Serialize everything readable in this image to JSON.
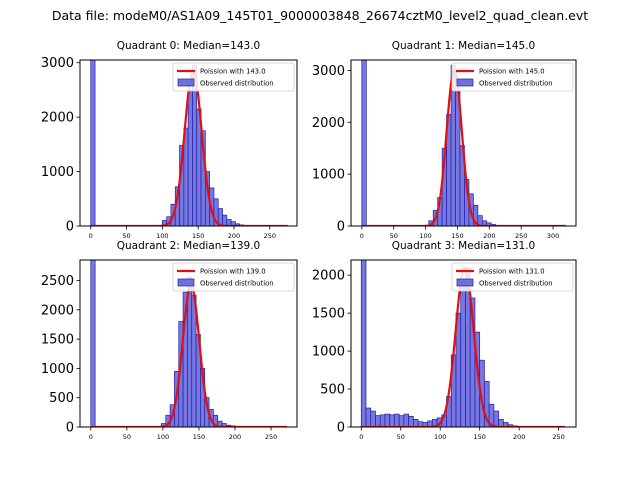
{
  "figure_title": "Data file: modeM0/AS1A09_145T01_9000003848_26674cztM0_level2_quad_clean.evt",
  "colors": {
    "bar_fill": "#7070e0",
    "bar_edge": "#2020a0",
    "curve": "#e01010",
    "axes": "#000000"
  },
  "chart_data": [
    {
      "type": "bar",
      "title": "Quadrant 0: Median=143.0",
      "legend": [
        "Poission with 143.0",
        "Observed distribution"
      ],
      "legend_position": "top-right",
      "xlim": [
        -15,
        288
      ],
      "ylim": [
        0,
        3050
      ],
      "xticks": [
        0,
        50,
        100,
        150,
        200,
        250
      ],
      "yticks": [
        0,
        1000,
        2000,
        3000
      ],
      "bin_width": 6,
      "bins": [
        [
          0,
          3050
        ],
        [
          100,
          100
        ],
        [
          106,
          170
        ],
        [
          112,
          400
        ],
        [
          118,
          720
        ],
        [
          124,
          1480
        ],
        [
          130,
          1800
        ],
        [
          136,
          2500
        ],
        [
          142,
          2950
        ],
        [
          148,
          2150
        ],
        [
          154,
          1750
        ],
        [
          160,
          1000
        ],
        [
          166,
          700
        ],
        [
          172,
          500
        ],
        [
          178,
          320
        ],
        [
          184,
          200
        ],
        [
          190,
          120
        ],
        [
          196,
          80
        ],
        [
          202,
          40
        ],
        [
          208,
          20
        ]
      ],
      "poisson": {
        "mean": 143,
        "peak": 2850,
        "sigma": 12,
        "x_range": [
          0,
          275
        ]
      }
    },
    {
      "type": "bar",
      "title": "Quadrant 1: Median=145.0",
      "legend": [
        "Poission with 145.0",
        "Observed distribution"
      ],
      "legend_position": "top-right",
      "xlim": [
        -17,
        336
      ],
      "ylim": [
        0,
        3200
      ],
      "xticks": [
        0,
        50,
        100,
        150,
        200,
        250,
        300
      ],
      "yticks": [
        0,
        1000,
        2000,
        3000
      ],
      "bin_width": 7,
      "bins": [
        [
          0,
          3200
        ],
        [
          105,
          100
        ],
        [
          112,
          300
        ],
        [
          119,
          550
        ],
        [
          126,
          1500
        ],
        [
          133,
          2150
        ],
        [
          140,
          3100
        ],
        [
          147,
          2600
        ],
        [
          154,
          1550
        ],
        [
          161,
          900
        ],
        [
          168,
          620
        ],
        [
          175,
          400
        ],
        [
          182,
          200
        ],
        [
          189,
          100
        ],
        [
          196,
          60
        ],
        [
          203,
          30
        ]
      ],
      "poisson": {
        "mean": 145,
        "peak": 3000,
        "sigma": 12,
        "x_range": [
          0,
          320
        ]
      }
    },
    {
      "type": "bar",
      "title": "Quadrant 2: Median=139.0",
      "legend": [
        "Poission with 139.0",
        "Observed distribution"
      ],
      "legend_position": "top-right",
      "xlim": [
        -15,
        286
      ],
      "ylim": [
        0,
        2850
      ],
      "xticks": [
        0,
        50,
        100,
        150,
        200,
        250
      ],
      "yticks": [
        0,
        500,
        1000,
        1500,
        2000,
        2500
      ],
      "bin_width": 6,
      "bins": [
        [
          0,
          2850
        ],
        [
          98,
          60
        ],
        [
          104,
          200
        ],
        [
          110,
          380
        ],
        [
          116,
          950
        ],
        [
          122,
          1800
        ],
        [
          128,
          2300
        ],
        [
          134,
          2560
        ],
        [
          140,
          2250
        ],
        [
          146,
          1580
        ],
        [
          152,
          1000
        ],
        [
          158,
          500
        ],
        [
          164,
          300
        ],
        [
          170,
          200
        ],
        [
          176,
          100
        ],
        [
          182,
          60
        ],
        [
          188,
          30
        ],
        [
          194,
          20
        ]
      ],
      "poisson": {
        "mean": 139,
        "peak": 2420,
        "sigma": 11.5,
        "x_range": [
          0,
          272
        ]
      }
    },
    {
      "type": "bar",
      "title": "Quadrant 3: Median=131.0",
      "legend": [
        "Poission with 131.0",
        "Observed distribution"
      ],
      "legend_position": "top-right",
      "xlim": [
        -13,
        272
      ],
      "ylim": [
        0,
        2200
      ],
      "xticks": [
        0,
        50,
        100,
        150,
        200,
        250
      ],
      "yticks": [
        0,
        500,
        1000,
        1500,
        2000
      ],
      "bin_width": 6,
      "bins": [
        [
          0,
          2200
        ],
        [
          6,
          250
        ],
        [
          12,
          210
        ],
        [
          18,
          150
        ],
        [
          24,
          160
        ],
        [
          30,
          170
        ],
        [
          36,
          160
        ],
        [
          42,
          170
        ],
        [
          48,
          150
        ],
        [
          54,
          170
        ],
        [
          60,
          140
        ],
        [
          66,
          100
        ],
        [
          72,
          70
        ],
        [
          78,
          60
        ],
        [
          84,
          80
        ],
        [
          90,
          100
        ],
        [
          96,
          120
        ],
        [
          102,
          160
        ],
        [
          108,
          400
        ],
        [
          114,
          950
        ],
        [
          120,
          1500
        ],
        [
          126,
          1900
        ],
        [
          132,
          2100
        ],
        [
          138,
          1700
        ],
        [
          144,
          1250
        ],
        [
          150,
          880
        ],
        [
          156,
          600
        ],
        [
          162,
          300
        ],
        [
          168,
          210
        ],
        [
          174,
          100
        ],
        [
          180,
          60
        ],
        [
          186,
          30
        ],
        [
          192,
          15
        ]
      ],
      "poisson": {
        "mean": 131,
        "peak": 2100,
        "sigma": 11.4,
        "x_range": [
          0,
          258
        ]
      }
    }
  ]
}
